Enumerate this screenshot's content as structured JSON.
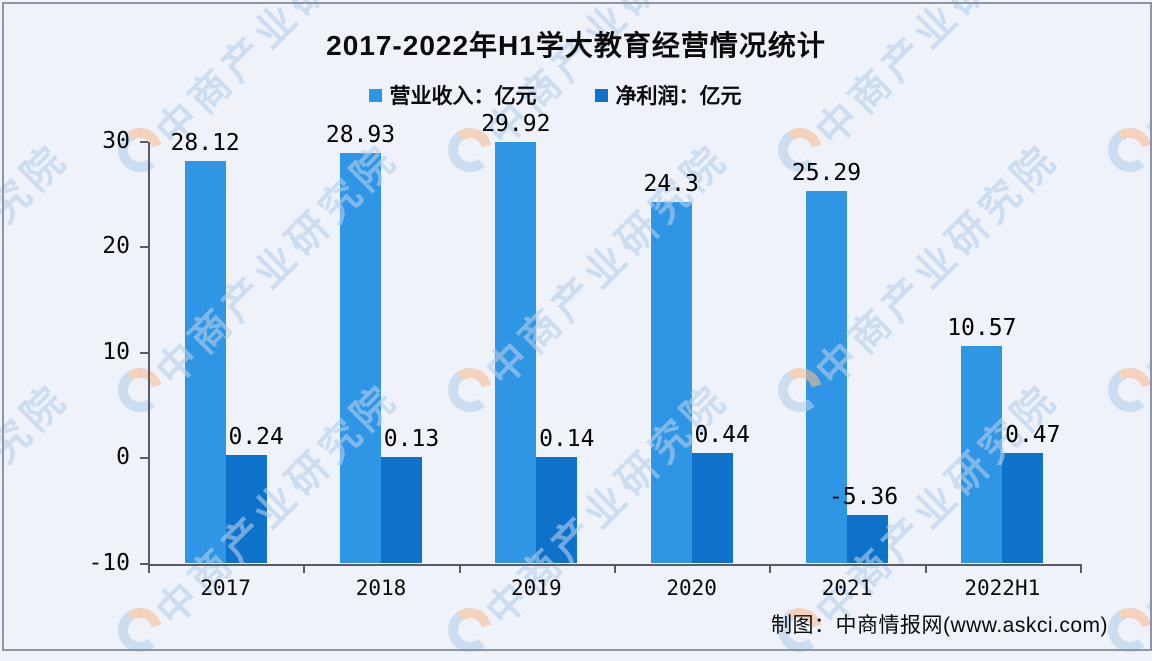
{
  "title": "2017-2022年H1学大教育经营情况统计",
  "legend": [
    {
      "label": "营业收入：亿元",
      "color": "#2e96e4"
    },
    {
      "label": "净利润：亿元",
      "color": "#0e72cb"
    }
  ],
  "chart_data": {
    "type": "bar",
    "title": "2017-2022年H1学大教育经营情况统计",
    "categories": [
      "2017",
      "2018",
      "2019",
      "2020",
      "2021",
      "2022H1"
    ],
    "series": [
      {
        "name": "营业收入：亿元",
        "color": "#2e96e4",
        "values": [
          28.12,
          28.93,
          29.92,
          24.3,
          25.29,
          10.57
        ],
        "labels": [
          "28.12",
          "28.93",
          "29.92",
          "24.3",
          "25.29",
          "10.57"
        ]
      },
      {
        "name": "净利润：亿元",
        "color": "#0e72cb",
        "values": [
          0.24,
          0.13,
          0.14,
          0.44,
          -5.36,
          0.47
        ],
        "labels": [
          "0.24",
          "0.13",
          "0.14",
          "0.44",
          "-5.36",
          "0.47"
        ]
      }
    ],
    "ylim": [
      -10,
      30
    ],
    "yticks": [
      30,
      20,
      10,
      0,
      -10
    ],
    "bar_baseline": -10,
    "grid": false,
    "legend_position": "top"
  },
  "attribution": "制图：中商情报网(www.askci.com)",
  "watermark": {
    "text": "中商产业研究院",
    "text_color": "#b6cfec",
    "logo_blue": "#b3cfec",
    "logo_orange": "#f6bc97"
  }
}
